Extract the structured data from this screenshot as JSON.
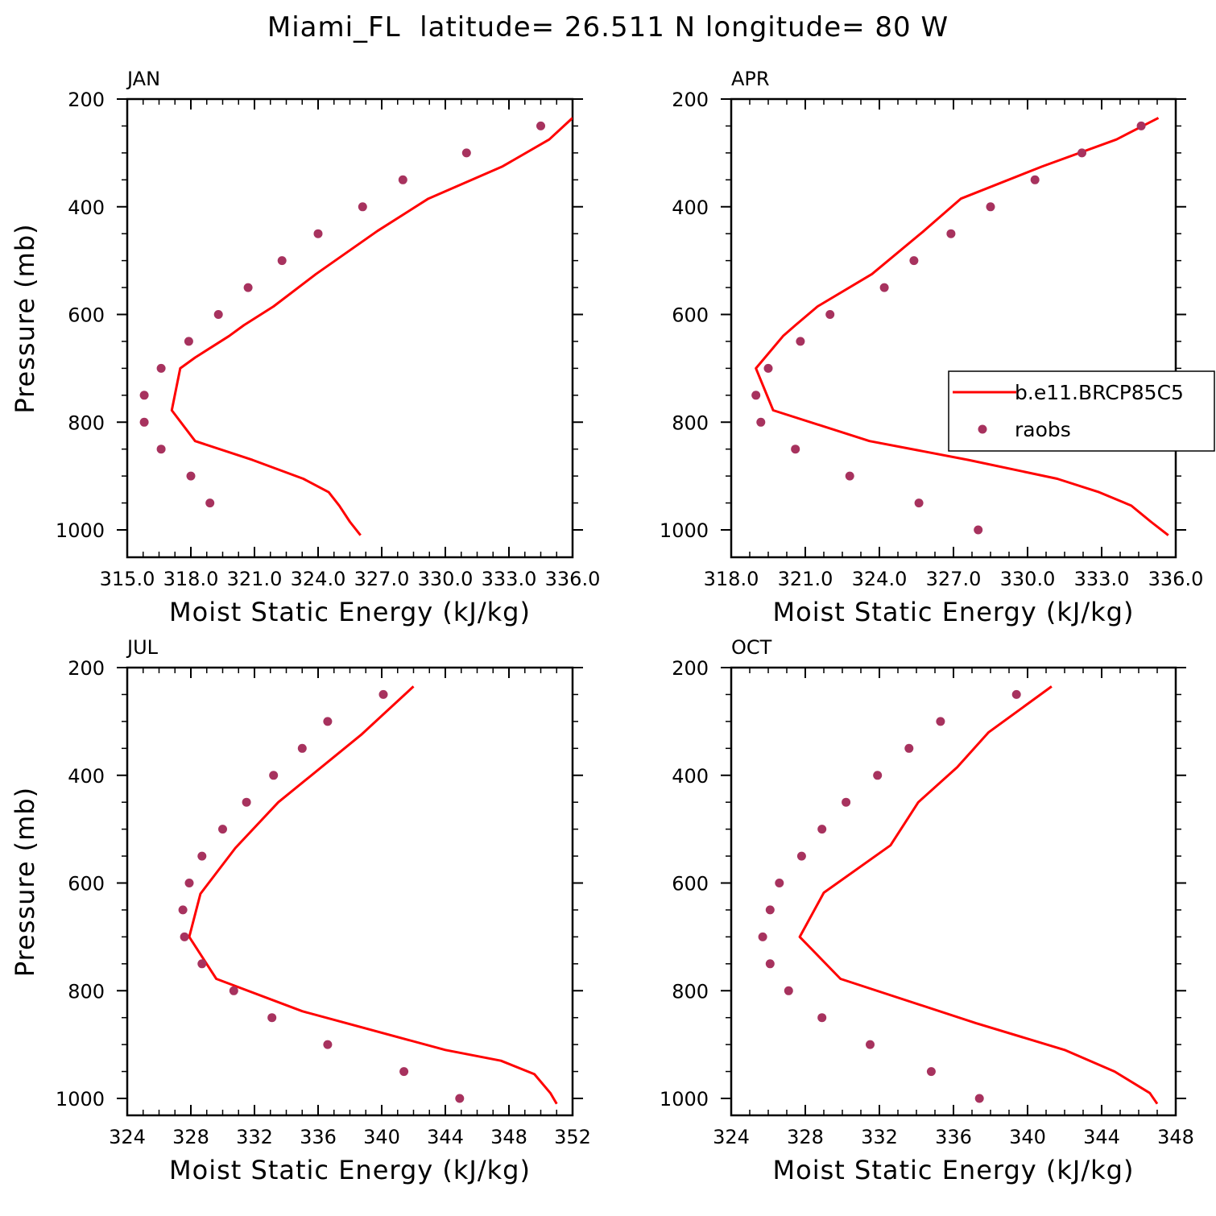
{
  "figure": {
    "title": "Miami_FL  latitude= 26.511 N longitude= 80 W"
  },
  "legend": {
    "entries": [
      "b.e11.BRCP85C5",
      "raobs"
    ],
    "colors": {
      "model": "#ff0000",
      "raobs": "#a7325e"
    }
  },
  "chart_data": [
    {
      "type": "line",
      "title": "JAN",
      "xlabel": "Moist Static Energy (kJ/kg)",
      "ylabel": "Pressure (mb)",
      "xlim": [
        315.0,
        336.0
      ],
      "ylim": [
        1000,
        200
      ],
      "xticks": [
        "315.0",
        "318.0",
        "321.0",
        "324.0",
        "327.0",
        "330.0",
        "333.0",
        "336.0"
      ],
      "yticks": [
        "200",
        "400",
        "600",
        "800",
        "1000"
      ],
      "series": [
        {
          "name": "b.e11.BRCP85C5",
          "kind": "line",
          "x": [
            336.0,
            334.9,
            332.7,
            329.2,
            326.8,
            323.9,
            321.9,
            320.5,
            319.8,
            318.2,
            317.5,
            317.1,
            318.2,
            320.9,
            323.3,
            324.5,
            325.0,
            325.5,
            326.0
          ],
          "y": [
            235,
            275,
            325,
            385,
            445,
            525,
            585,
            620,
            640,
            680,
            700,
            778,
            835,
            870,
            905,
            930,
            955,
            985,
            1010
          ]
        },
        {
          "name": "raobs",
          "kind": "scatter",
          "x": [
            334.5,
            331.0,
            328.0,
            326.1,
            324.0,
            322.3,
            320.7,
            319.3,
            317.9,
            316.6,
            315.8,
            315.8,
            316.6,
            318.0,
            318.9
          ],
          "y": [
            250,
            300,
            350,
            400,
            450,
            500,
            550,
            600,
            650,
            700,
            750,
            800,
            850,
            900,
            950
          ]
        }
      ]
    },
    {
      "type": "line",
      "title": "APR",
      "xlabel": "Moist Static Energy (kJ/kg)",
      "ylabel": "",
      "xlim": [
        318.0,
        336.0
      ],
      "ylim": [
        1000,
        200
      ],
      "xticks": [
        "318.0",
        "321.0",
        "324.0",
        "327.0",
        "330.0",
        "333.0",
        "336.0"
      ],
      "yticks": [
        "200",
        "400",
        "600",
        "800",
        "1000"
      ],
      "series": [
        {
          "name": "b.e11.BRCP85C5",
          "kind": "line",
          "x": [
            335.3,
            333.6,
            330.6,
            327.3,
            325.8,
            323.7,
            321.5,
            320.6,
            320.1,
            319.0,
            319.7,
            323.6,
            327.6,
            331.2,
            332.9,
            334.2,
            335.0,
            335.7
          ],
          "y": [
            235,
            275,
            325,
            385,
            445,
            525,
            585,
            620,
            640,
            700,
            778,
            835,
            870,
            905,
            930,
            955,
            985,
            1010
          ]
        },
        {
          "name": "raobs",
          "kind": "scatter",
          "x": [
            334.6,
            332.2,
            330.3,
            328.5,
            326.9,
            325.4,
            324.2,
            322.0,
            320.8,
            319.5,
            319.0,
            319.2,
            320.6,
            322.8,
            325.6,
            328.0
          ],
          "y": [
            250,
            300,
            350,
            400,
            450,
            500,
            550,
            600,
            650,
            700,
            750,
            800,
            850,
            900,
            950,
            1000
          ]
        }
      ]
    },
    {
      "type": "line",
      "title": "JUL",
      "xlabel": "Moist Static Energy (kJ/kg)",
      "ylabel": "Pressure (mb)",
      "xlim": [
        324,
        352
      ],
      "ylim": [
        1000,
        200
      ],
      "xticks": [
        "324",
        "328",
        "332",
        "336",
        "340",
        "344",
        "348",
        "352"
      ],
      "yticks": [
        "200",
        "400",
        "600",
        "800",
        "1000"
      ],
      "series": [
        {
          "name": "b.e11.BRCP85C5",
          "kind": "line",
          "x": [
            342.0,
            338.7,
            333.5,
            330.8,
            328.6,
            327.9,
            329.6,
            335.0,
            344.0,
            347.5,
            349.6,
            350.6,
            351.0
          ],
          "y": [
            235,
            325,
            450,
            535,
            620,
            700,
            778,
            838,
            910,
            930,
            955,
            990,
            1010
          ]
        },
        {
          "name": "raobs",
          "kind": "scatter",
          "x": [
            340.1,
            336.6,
            335.0,
            333.2,
            331.5,
            330.0,
            328.7,
            327.9,
            327.5,
            327.6,
            328.7,
            330.7,
            333.1,
            336.6,
            341.4,
            344.9
          ],
          "y": [
            250,
            300,
            350,
            400,
            450,
            500,
            550,
            600,
            650,
            700,
            750,
            800,
            850,
            900,
            950,
            1000
          ]
        }
      ]
    },
    {
      "type": "line",
      "title": "OCT",
      "xlabel": "Moist Static Energy (kJ/kg)",
      "ylabel": "",
      "xlim": [
        324,
        348
      ],
      "ylim": [
        1000,
        200
      ],
      "xticks": [
        "324",
        "328",
        "332",
        "336",
        "340",
        "344",
        "348"
      ],
      "yticks": [
        "200",
        "400",
        "600",
        "800",
        "1000"
      ],
      "series": [
        {
          "name": "b.e11.BRCP85C5",
          "kind": "line",
          "x": [
            341.3,
            337.9,
            336.2,
            334.1,
            332.6,
            329.0,
            327.7,
            329.9,
            337.2,
            342.0,
            344.7,
            346.6,
            347.0
          ],
          "y": [
            235,
            320,
            385,
            450,
            530,
            618,
            700,
            778,
            860,
            910,
            950,
            990,
            1010
          ]
        },
        {
          "name": "raobs",
          "kind": "scatter",
          "x": [
            339.4,
            335.3,
            333.6,
            331.9,
            330.2,
            328.9,
            327.8,
            326.6,
            326.1,
            325.7,
            326.1,
            327.1,
            328.9,
            331.5,
            334.8,
            337.4
          ],
          "y": [
            250,
            300,
            350,
            400,
            450,
            500,
            550,
            600,
            650,
            700,
            750,
            800,
            850,
            900,
            950,
            1000
          ]
        }
      ]
    }
  ]
}
